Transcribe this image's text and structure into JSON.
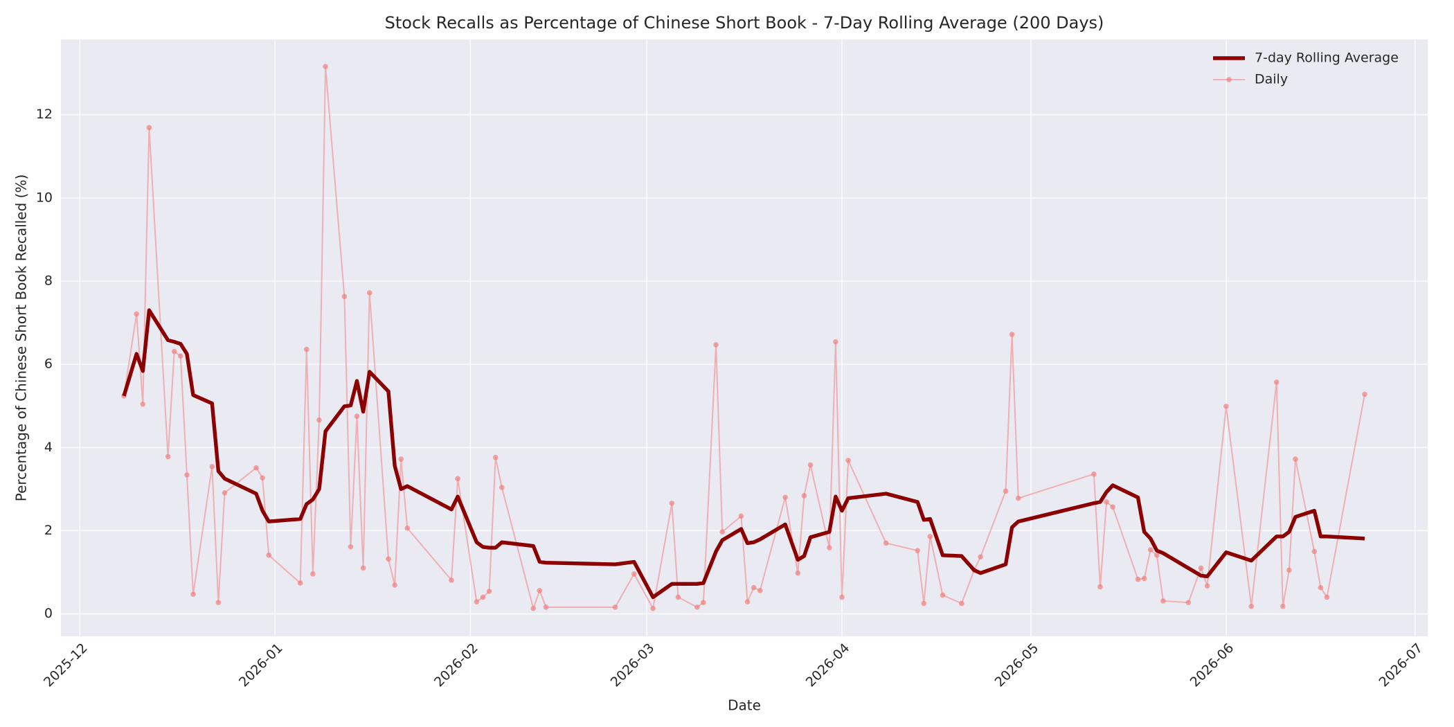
{
  "chart_data": {
    "type": "line",
    "title": "Stock Recalls as Percentage of Chinese Short Book - 7-Day Rolling Average (200 Days)",
    "x_label": "Date",
    "y_label": "Percentage of Chinese Short Book Recalled (%)",
    "x": [
      "2025-12-08",
      "2025-12-10",
      "2025-12-11",
      "2025-12-12",
      "2025-12-15",
      "2025-12-16",
      "2025-12-17",
      "2025-12-18",
      "2025-12-19",
      "2025-12-22",
      "2025-12-23",
      "2025-12-24",
      "2025-12-29",
      "2025-12-30",
      "2025-12-31",
      "2026-01-05",
      "2026-01-06",
      "2026-01-07",
      "2026-01-08",
      "2026-01-09",
      "2026-01-12",
      "2026-01-13",
      "2026-01-14",
      "2026-01-15",
      "2026-01-16",
      "2026-01-19",
      "2026-01-20",
      "2026-01-21",
      "2026-01-22",
      "2026-01-29",
      "2026-01-30",
      "2026-02-02",
      "2026-02-03",
      "2026-02-04",
      "2026-02-05",
      "2026-02-06",
      "2026-02-11",
      "2026-02-12",
      "2026-02-13",
      "2026-02-24",
      "2026-02-27",
      "2026-03-02",
      "2026-03-05",
      "2026-03-06",
      "2026-03-09",
      "2026-03-10",
      "2026-03-12",
      "2026-03-13",
      "2026-03-16",
      "2026-03-17",
      "2026-03-18",
      "2026-03-19",
      "2026-03-23",
      "2026-03-25",
      "2026-03-26",
      "2026-03-27",
      "2026-03-30",
      "2026-03-31",
      "2026-04-01",
      "2026-04-02",
      "2026-04-08",
      "2026-04-13",
      "2026-04-14",
      "2026-04-15",
      "2026-04-17",
      "2026-04-20",
      "2026-04-22",
      "2026-04-23",
      "2026-04-27",
      "2026-04-28",
      "2026-04-29",
      "2026-05-11",
      "2026-05-12",
      "2026-05-13",
      "2026-05-14",
      "2026-05-18",
      "2026-05-19",
      "2026-05-20",
      "2026-05-21",
      "2026-05-22",
      "2026-05-26",
      "2026-05-28",
      "2026-05-29",
      "2026-06-01",
      "2026-06-05",
      "2026-06-09",
      "2026-06-10",
      "2026-06-11",
      "2026-06-12",
      "2026-06-15",
      "2026-06-16",
      "2026-06-17",
      "2026-06-23"
    ],
    "series": [
      {
        "name": "7-day Rolling Average",
        "color": "#8b0000",
        "width": 4,
        "markers": false,
        "values": [
          5.24,
          6.25,
          5.84,
          7.3,
          6.58,
          6.54,
          6.49,
          6.25,
          5.26,
          5.06,
          3.43,
          3.25,
          2.89,
          2.48,
          2.22,
          2.28,
          2.64,
          2.75,
          3.0,
          4.39,
          4.99,
          5.01,
          5.6,
          4.86,
          5.82,
          5.35,
          3.56,
          3.0,
          3.07,
          2.51,
          2.82,
          1.72,
          1.61,
          1.59,
          1.59,
          1.72,
          1.63,
          1.25,
          1.23,
          1.19,
          1.25,
          0.4,
          0.72,
          0.72,
          0.72,
          0.74,
          1.5,
          1.77,
          2.04,
          1.7,
          1.72,
          1.79,
          2.15,
          1.3,
          1.39,
          1.84,
          1.97,
          2.82,
          2.48,
          2.78,
          2.89,
          2.69,
          2.26,
          2.28,
          1.41,
          1.39,
          1.05,
          0.98,
          1.19,
          2.08,
          2.22,
          2.66,
          2.69,
          2.93,
          3.09,
          2.8,
          1.97,
          1.81,
          1.52,
          1.46,
          1.1,
          0.92,
          0.9,
          1.48,
          1.28,
          1.86,
          1.86,
          1.97,
          2.33,
          2.48,
          1.86,
          1.86,
          1.81
        ]
      },
      {
        "name": "Daily",
        "color": "#f08080",
        "width": 1.5,
        "markers": true,
        "values": [
          5.24,
          7.21,
          5.04,
          11.69,
          3.78,
          6.31,
          6.2,
          3.34,
          0.47,
          3.54,
          0.27,
          2.91,
          3.51,
          3.27,
          1.41,
          0.74,
          6.36,
          0.96,
          4.66,
          13.16,
          7.63,
          1.61,
          4.75,
          1.1,
          7.72,
          1.32,
          0.69,
          3.72,
          2.06,
          0.81,
          3.25,
          0.29,
          0.4,
          0.54,
          3.76,
          3.04,
          0.13,
          0.56,
          0.16,
          0.16,
          0.96,
          0.13,
          2.66,
          0.4,
          0.16,
          0.27,
          6.47,
          1.97,
          2.35,
          0.29,
          0.63,
          0.56,
          2.8,
          0.98,
          2.84,
          3.58,
          1.59,
          6.54,
          0.4,
          3.69,
          1.7,
          1.52,
          0.25,
          1.86,
          0.45,
          0.25,
          1.05,
          1.37,
          2.95,
          6.72,
          2.78,
          3.36,
          0.65,
          2.69,
          2.57,
          0.83,
          0.85,
          1.54,
          1.41,
          0.31,
          0.27,
          1.1,
          0.67,
          4.99,
          0.18,
          5.57,
          0.18,
          1.05,
          3.72,
          1.5,
          0.63,
          0.4,
          5.28
        ]
      }
    ],
    "xlim": [
      "2025-11-28",
      "2026-07-03"
    ],
    "xticks": [
      {
        "value": "2025-12-01",
        "label": "2025-12"
      },
      {
        "value": "2026-01-01",
        "label": "2026-01"
      },
      {
        "value": "2026-02-01",
        "label": "2026-02"
      },
      {
        "value": "2026-03-01",
        "label": "2026-03"
      },
      {
        "value": "2026-04-01",
        "label": "2026-04"
      },
      {
        "value": "2026-05-01",
        "label": "2026-05"
      },
      {
        "value": "2026-06-01",
        "label": "2026-06"
      },
      {
        "value": "2026-07-01",
        "label": "2026-07"
      }
    ],
    "ylim": [
      -0.54,
      13.81
    ],
    "yticks": [
      0,
      2,
      4,
      6,
      8,
      10,
      12
    ],
    "grid": true,
    "legend": "upper right"
  }
}
